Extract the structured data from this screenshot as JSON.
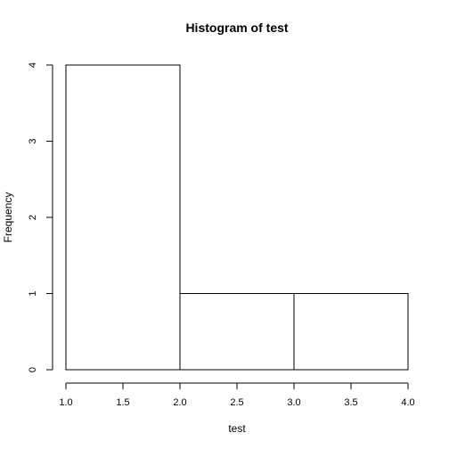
{
  "chart_data": {
    "type": "bar",
    "title": "Histogram of test",
    "xlabel": "test",
    "ylabel": "Frequency",
    "bins": [
      {
        "start": 1.0,
        "end": 2.0,
        "count": 4
      },
      {
        "start": 2.0,
        "end": 3.0,
        "count": 1
      },
      {
        "start": 3.0,
        "end": 4.0,
        "count": 1
      }
    ],
    "xlim": [
      1.0,
      4.0
    ],
    "ylim": [
      0,
      4
    ],
    "x_ticks": [
      "1.0",
      "1.5",
      "2.0",
      "2.5",
      "3.0",
      "3.5",
      "4.0"
    ],
    "y_ticks": [
      "0",
      "1",
      "2",
      "3",
      "4"
    ],
    "grid": false,
    "colors": {
      "bar_fill": "#ffffff",
      "bar_stroke": "#000000"
    }
  }
}
